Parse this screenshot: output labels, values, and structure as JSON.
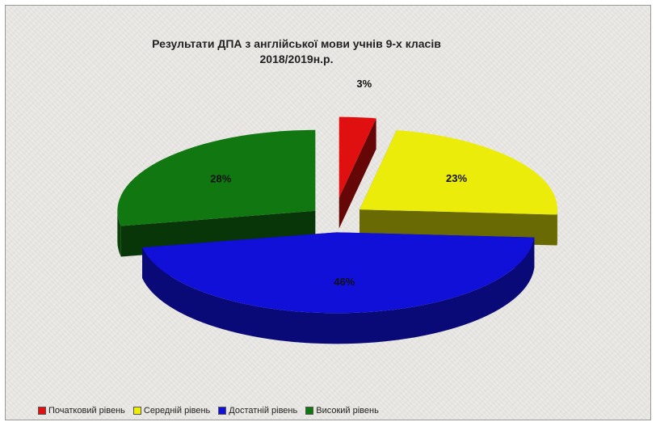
{
  "chart_data": {
    "type": "pie",
    "title": "Результати ДПА з англійської мови учнів 9-х класів",
    "subtitle": "2018/2019н.р.",
    "categories": [
      "Початковий рівень",
      "Середній рівень",
      "Достатній рівень",
      "Високий рівень"
    ],
    "values": [
      3,
      23,
      46,
      28
    ],
    "labels": [
      "3%",
      "23%",
      "46%",
      "28%"
    ],
    "colors": [
      "#e01010",
      "#ecec0a",
      "#1010d8",
      "#117711"
    ],
    "exploded": true,
    "style": "3d",
    "legend_position": "bottom"
  }
}
